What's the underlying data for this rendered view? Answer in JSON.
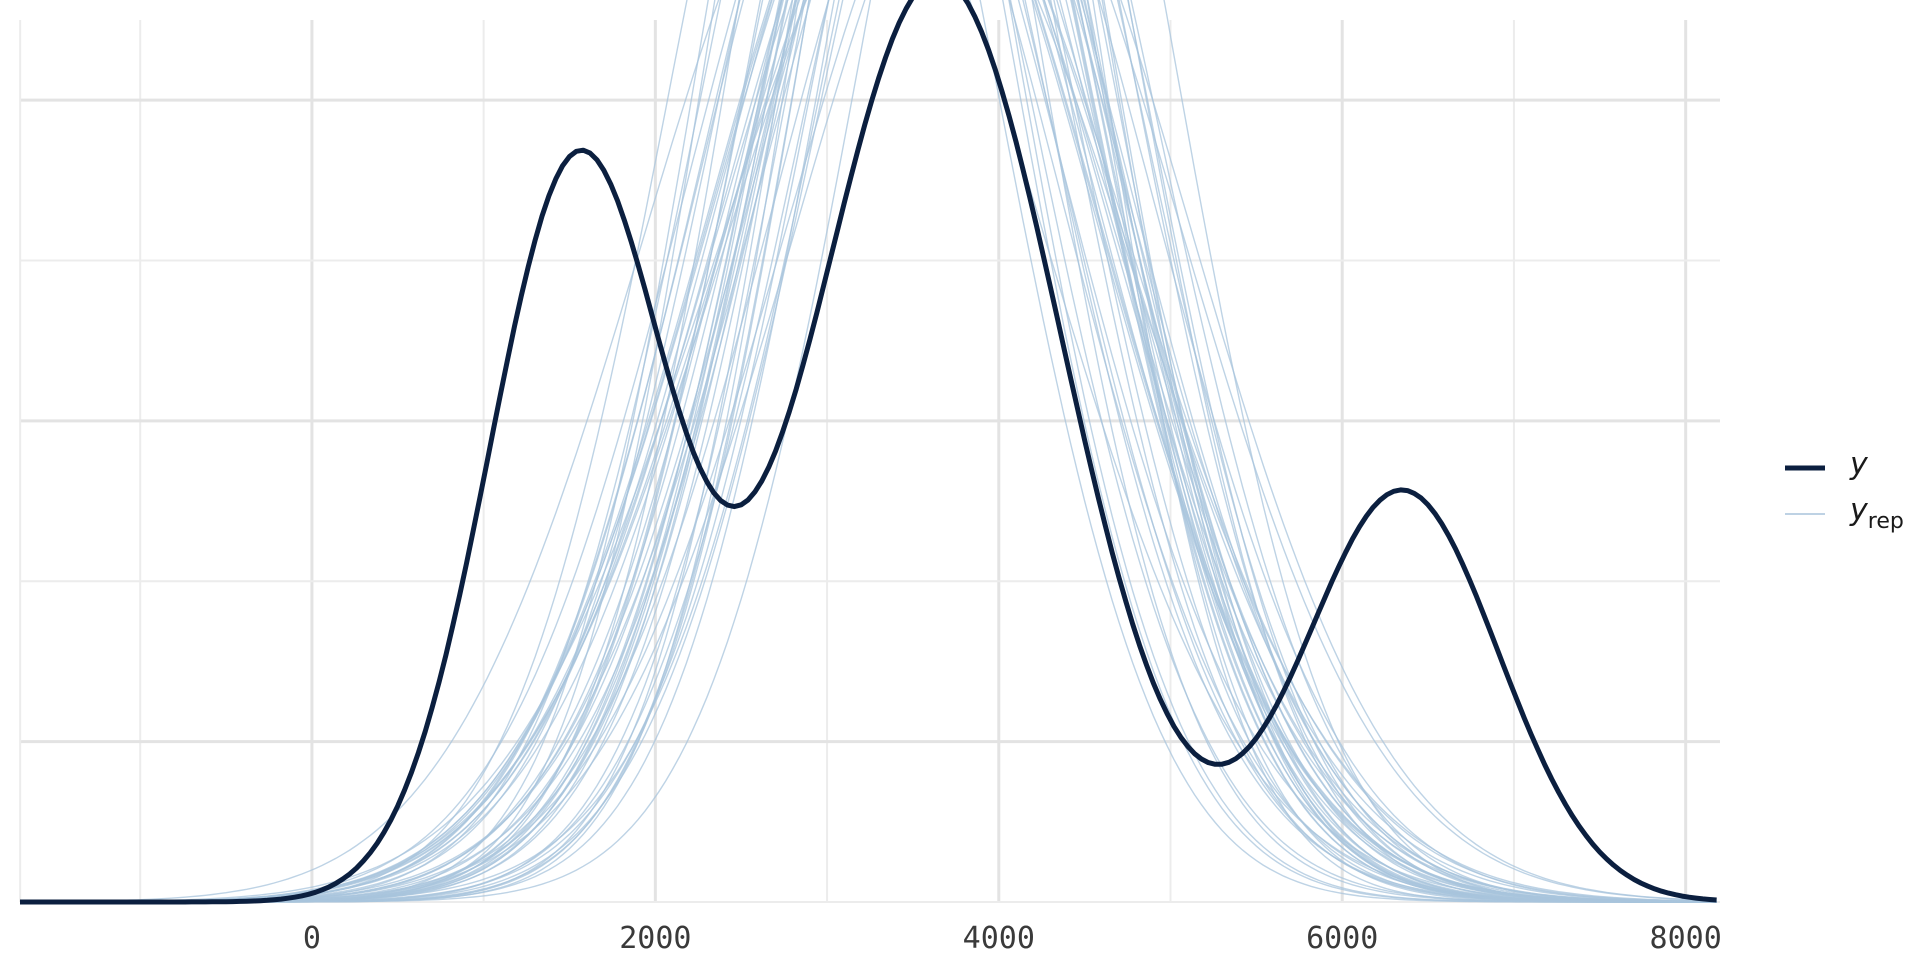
{
  "chart_data": {
    "type": "line",
    "title": "",
    "xlabel": "",
    "ylabel": "",
    "xlim": [
      -1700,
      8200
    ],
    "ylim": [
      0,
      0.000275
    ],
    "x_ticks": [
      0,
      2000,
      4000,
      6000,
      8000
    ],
    "x_tick_labels": [
      "0",
      "2000",
      "4000",
      "6000",
      "8000"
    ],
    "grid": true,
    "legend_position": "right",
    "legend": [
      {
        "label": "y",
        "subscript": "",
        "color": "#0b1f3f",
        "style": "thick"
      },
      {
        "label": "y",
        "subscript": "rep",
        "color": "#a8c4dc",
        "style": "thin"
      }
    ],
    "y_series": {
      "name": "y",
      "color": "#0b1f3f",
      "components": [
        {
          "mean": 1550,
          "sd": 520,
          "weight": 0.3
        },
        {
          "mean": 3650,
          "sd": 720,
          "weight": 0.52
        },
        {
          "mean": 6350,
          "sd": 560,
          "weight": 0.18
        }
      ]
    },
    "yrep_series": {
      "name": "y_rep",
      "color": "#a8c4dc",
      "draws": 50,
      "center_mean": 3550,
      "center_sd": 1050,
      "peak_density_range": [
        0.000205,
        0.00027
      ]
    }
  }
}
